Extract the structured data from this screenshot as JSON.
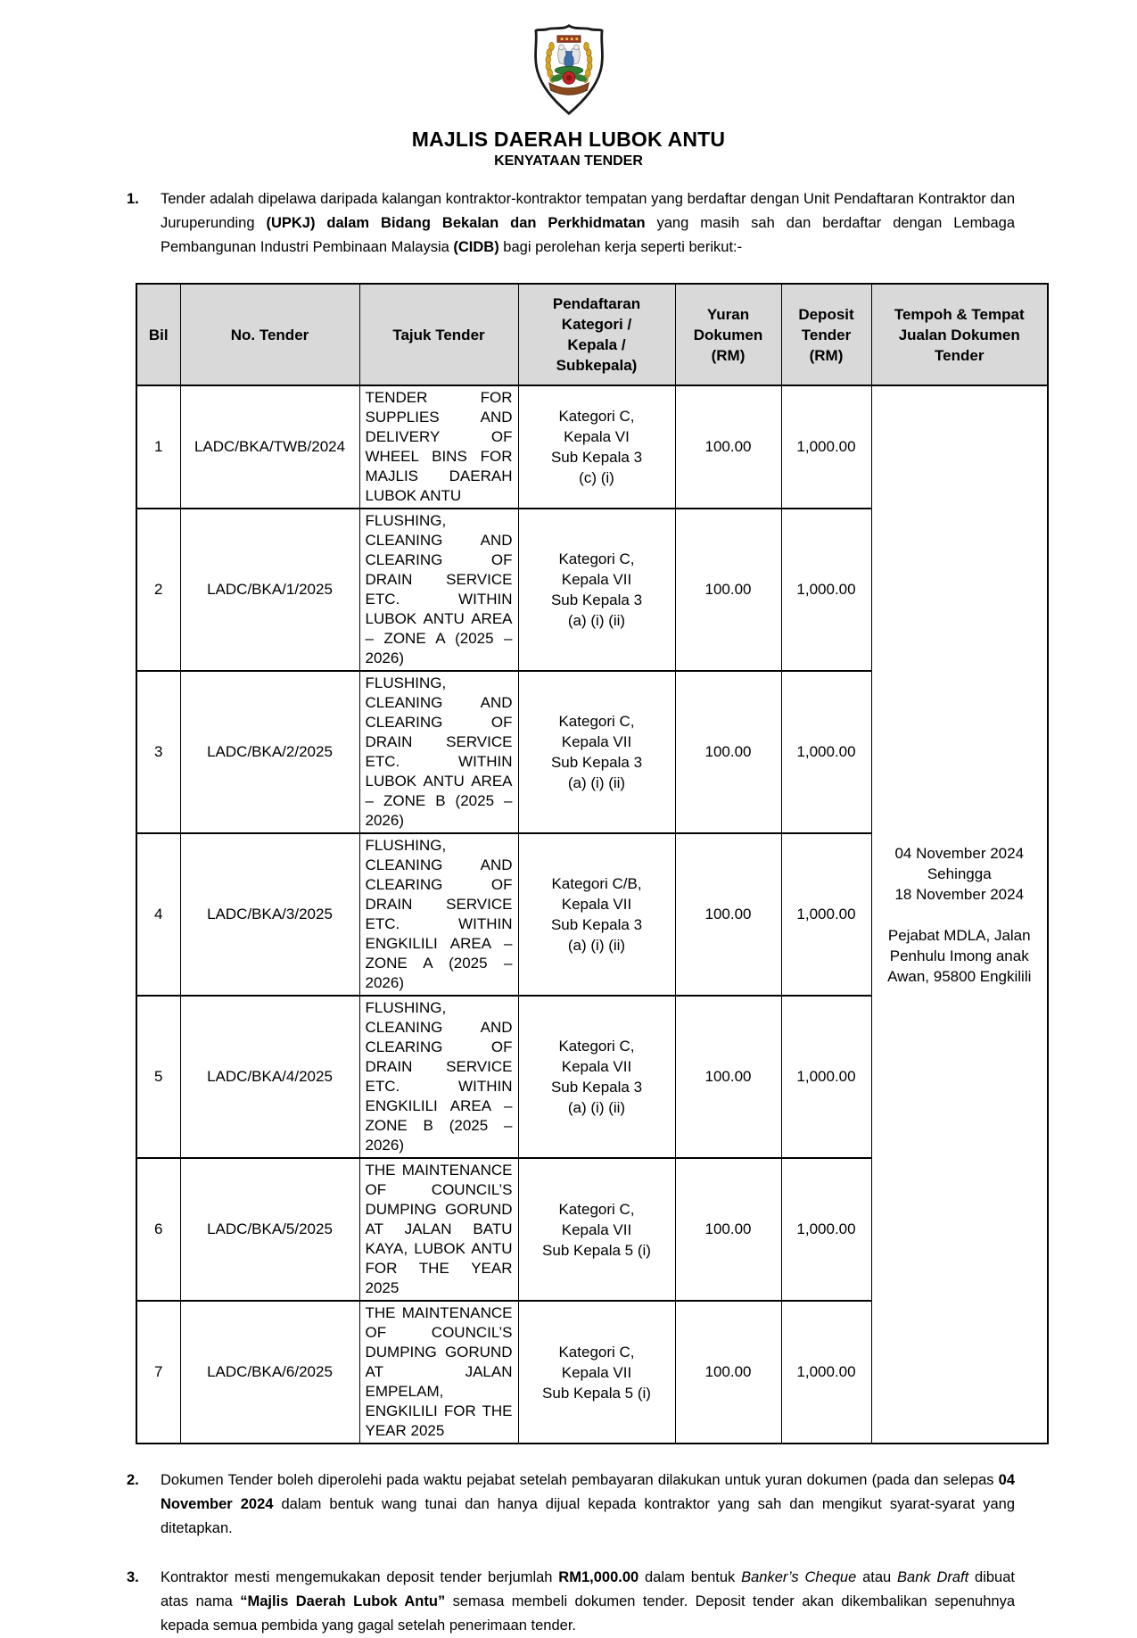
{
  "header": {
    "crest_icon": "majlis-daerah-lubok-antu-crest",
    "title": "MAJLIS DAERAH LUBOK ANTU",
    "subtitle": "KENYATAAN TENDER"
  },
  "colors": {
    "table_header_bg": "#d9d9d9",
    "text": "#000000",
    "crest_gold": "#d9a41f",
    "crest_red": "#c22525",
    "crest_green": "#2f7d33",
    "crest_blue": "#3f6fae",
    "crest_brown": "#8a4a1e"
  },
  "paragraph1": {
    "number": "1.",
    "segments": [
      {
        "text": "Tender adalah dipelawa daripada kalangan kontraktor-kontraktor tempatan yang berdaftar dengan Unit Pendaftaran Kontraktor dan Juruperunding ",
        "style": "normal"
      },
      {
        "text": "(UPKJ) dalam Bidang Bekalan dan Perkhidmatan",
        "style": "bold"
      },
      {
        "text": " yang masih sah dan berdaftar dengan Lembaga Pembangunan Industri Pembinaan Malaysia ",
        "style": "normal"
      },
      {
        "text": "(CIDB)",
        "style": "bold"
      },
      {
        "text": " bagi perolehan kerja seperti berikut:-",
        "style": "normal"
      }
    ]
  },
  "table": {
    "headers": {
      "bil": "Bil",
      "no_tender": "No. Tender",
      "tajuk": "Tajuk Tender",
      "pendaftaran": "Pendaftaran\nKategori /\nKepala /\nSubkepala)",
      "yuran": "Yuran\nDokumen\n(RM)",
      "deposit": "Deposit\nTender\n(RM)",
      "tempoh": "Tempoh & Tempat\nJualan Dokumen\nTender"
    },
    "rows": [
      {
        "bil": "1",
        "no_tender": "LADC/BKA/TWB/2024",
        "tajuk": "TENDER FOR SUPPLIES AND DELIVERY OF WHEEL BINS FOR MAJLIS DAERAH LUBOK ANTU",
        "kategori": "Kategori C,\nKepala VI\nSub Kepala 3\n(c) (i)",
        "yuran": "100.00",
        "deposit": "1,000.00"
      },
      {
        "bil": "2",
        "no_tender": "LADC/BKA/1/2025",
        "tajuk": "FLUSHING, CLEANING AND CLEARING OF DRAIN SERVICE ETC. WITHIN LUBOK ANTU AREA – ZONE A (2025 – 2026)",
        "kategori": "Kategori C,\nKepala VII\nSub Kepala 3\n(a) (i) (ii)",
        "yuran": "100.00",
        "deposit": "1,000.00"
      },
      {
        "bil": "3",
        "no_tender": "LADC/BKA/2/2025",
        "tajuk": "FLUSHING, CLEANING AND CLEARING OF DRAIN SERVICE ETC. WITHIN LUBOK ANTU AREA – ZONE B (2025 – 2026)",
        "kategori": "Kategori C,\nKepala VII\nSub Kepala 3\n(a) (i) (ii)",
        "yuran": "100.00",
        "deposit": "1,000.00"
      },
      {
        "bil": "4",
        "no_tender": "LADC/BKA/3/2025",
        "tajuk": "FLUSHING, CLEANING AND CLEARING OF DRAIN SERVICE ETC. WITHIN ENGKILILI AREA – ZONE A (2025 – 2026)",
        "kategori": "Kategori C/B,\nKepala VII\nSub Kepala 3\n(a) (i) (ii)",
        "yuran": "100.00",
        "deposit": "1,000.00"
      },
      {
        "bil": "5",
        "no_tender": "LADC/BKA/4/2025",
        "tajuk": "FLUSHING, CLEANING AND CLEARING OF DRAIN SERVICE ETC. WITHIN ENGKILILI AREA – ZONE B (2025 – 2026)",
        "kategori": "Kategori C,\nKepala VII\nSub Kepala 3\n(a) (i) (ii)",
        "yuran": "100.00",
        "deposit": "1,000.00"
      },
      {
        "bil": "6",
        "no_tender": "LADC/BKA/5/2025",
        "tajuk": "THE MAINTENANCE OF COUNCIL’S DUMPING GORUND AT JALAN BATU KAYA, LUBOK ANTU FOR THE YEAR 2025",
        "kategori": "Kategori C,\nKepala VII\nSub Kepala 5 (i)",
        "yuran": "100.00",
        "deposit": "1,000.00"
      },
      {
        "bil": "7",
        "no_tender": "LADC/BKA/6/2025",
        "tajuk": "THE MAINTENANCE OF COUNCIL’S DUMPING GORUND AT JALAN EMPELAM, ENGKILILI FOR THE YEAR 2025",
        "kategori": "Kategori C,\nKepala VII\nSub Kepala 5 (i)",
        "yuran": "100.00",
        "deposit": "1,000.00"
      }
    ],
    "tempoh_cell": "04 November 2024\nSehingga\n18 November 2024\n\nPejabat MDLA, Jalan\nPenhulu Imong anak\nAwan, 95800 Engkilili"
  },
  "paragraph2": {
    "number": "2.",
    "segments": [
      {
        "text": "Dokumen Tender boleh diperolehi pada waktu pejabat setelah pembayaran dilakukan untuk yuran dokumen (pada dan selepas ",
        "style": "normal"
      },
      {
        "text": "04 November 2024",
        "style": "bold"
      },
      {
        "text": " dalam bentuk wang tunai dan hanya dijual kepada kontraktor yang sah dan mengikut syarat-syarat yang ditetapkan.",
        "style": "normal"
      }
    ]
  },
  "paragraph3": {
    "number": "3.",
    "segments": [
      {
        "text": "Kontraktor mesti mengemukakan deposit tender berjumlah ",
        "style": "normal"
      },
      {
        "text": "RM1,000.00",
        "style": "bold"
      },
      {
        "text": " dalam bentuk ",
        "style": "normal"
      },
      {
        "text": "Banker’s Cheque",
        "style": "italic"
      },
      {
        "text": " atau ",
        "style": "normal"
      },
      {
        "text": "Bank Draft",
        "style": "italic"
      },
      {
        "text": " dibuat atas nama ",
        "style": "normal"
      },
      {
        "text": "“Majlis Daerah Lubok Antu”",
        "style": "bold"
      },
      {
        "text": " semasa membeli dokumen tender. Deposit tender akan dikembalikan sepenuhnya kepada semua pembida yang gagal setelah penerimaan tender.",
        "style": "normal"
      }
    ]
  }
}
